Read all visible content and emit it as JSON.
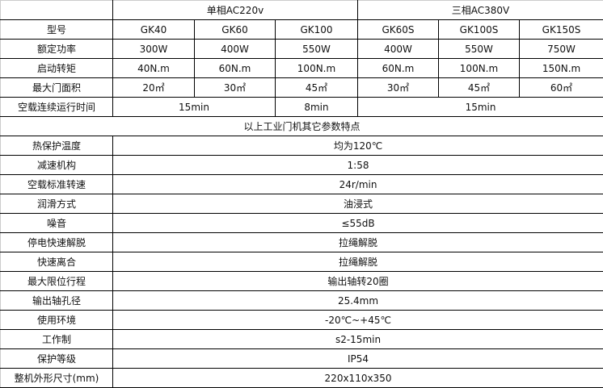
{
  "header": {
    "blank": "",
    "single_phase": "单相AC220v",
    "three_phase": "三相AC380V"
  },
  "model_row": {
    "label": "型号",
    "values": [
      "GK40",
      "GK60",
      "GK100",
      "GK60S",
      "GK100S",
      "GK150S"
    ]
  },
  "power_row": {
    "label": "额定功率",
    "values": [
      "300W",
      "400W",
      "550W",
      "400W",
      "550W",
      "750W"
    ]
  },
  "torque_row": {
    "label": "启动转矩",
    "values": [
      "40N.m",
      "60N.m",
      "100N.m",
      "60N.m",
      "100N.m",
      "150N.m"
    ]
  },
  "area_row": {
    "label": "最大门面积",
    "values": [
      "20㎡",
      "30㎡",
      "45㎡",
      "30㎡",
      "45㎡",
      "60㎡"
    ]
  },
  "runtime_row": {
    "label": "空载连续运行时间",
    "values": [
      "15min",
      "8min",
      "15min"
    ]
  },
  "section_title": "以上工业门机其它参数特点",
  "params": [
    {
      "label": "热保护温度",
      "value": "均为120℃"
    },
    {
      "label": "减速机构",
      "value": "1:58"
    },
    {
      "label": "空载标准转速",
      "value": "24r/min"
    },
    {
      "label": "润滑方式",
      "value": "油浸式"
    },
    {
      "label": "噪音",
      "value": "≤55dB"
    },
    {
      "label": "停电快速解脱",
      "value": "拉绳解脱"
    },
    {
      "label": "快速离合",
      "value": "拉绳解脱"
    },
    {
      "label": "最大限位行程",
      "value": "输出轴转20圈"
    },
    {
      "label": "输出轴孔径",
      "value": "25.4mm"
    },
    {
      "label": "使用环境",
      "value": "-20℃~+45℃"
    },
    {
      "label": "工作制",
      "value": "s2-15min"
    },
    {
      "label": "保护等级",
      "value": "IP54"
    },
    {
      "label": "整机外形尺寸(mm)",
      "value": "220x110x350"
    }
  ]
}
